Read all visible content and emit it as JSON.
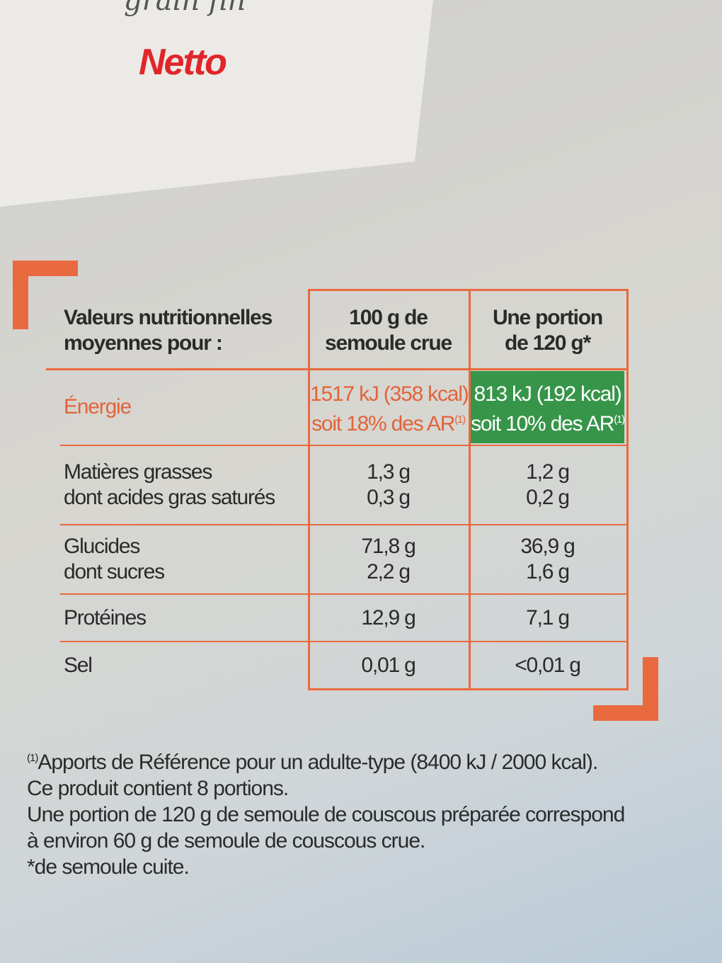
{
  "header": {
    "subtitle": "grain fin",
    "brand": "Netto"
  },
  "table": {
    "head": [
      [
        "Valeurs nutritionnelles",
        "moyennes pour :"
      ],
      [
        "100 g de",
        "semoule crue"
      ],
      [
        "Une portion",
        "de 120 g*"
      ]
    ],
    "rows": [
      {
        "label": [
          "Énergie"
        ],
        "per100": [
          "1517 kJ (358 kcal)",
          "soit 18% des AR"
        ],
        "per100_sup": "(1)",
        "portion": [
          "813 kJ (192 kcal)",
          "soit 10% des AR"
        ],
        "portion_sup": "(1)"
      },
      {
        "label": [
          "Matières grasses",
          "dont acides gras saturés"
        ],
        "per100": [
          "1,3 g",
          "0,3 g"
        ],
        "portion": [
          "1,2 g",
          "0,2 g"
        ]
      },
      {
        "label": [
          "Glucides",
          "dont sucres"
        ],
        "per100": [
          "71,8 g",
          "2,2 g"
        ],
        "portion": [
          "36,9 g",
          "1,6 g"
        ]
      },
      {
        "label": [
          "Protéines"
        ],
        "per100": [
          "12,9 g"
        ],
        "portion": [
          "7,1 g"
        ]
      },
      {
        "label": [
          "Sel"
        ],
        "per100": [
          "0,01 g"
        ],
        "portion": [
          "<0,01 g"
        ]
      }
    ]
  },
  "footnotes": {
    "ref": "(1)",
    "lines": [
      "Apports de Référence pour un adulte-type (8400 kJ / 2000 kcal).",
      "Ce produit contient 8 portions.",
      "Une portion de 120 g de semoule de couscous préparée correspond",
      "à environ 60 g de semoule de couscous crue.",
      "*de semoule cuite."
    ]
  }
}
